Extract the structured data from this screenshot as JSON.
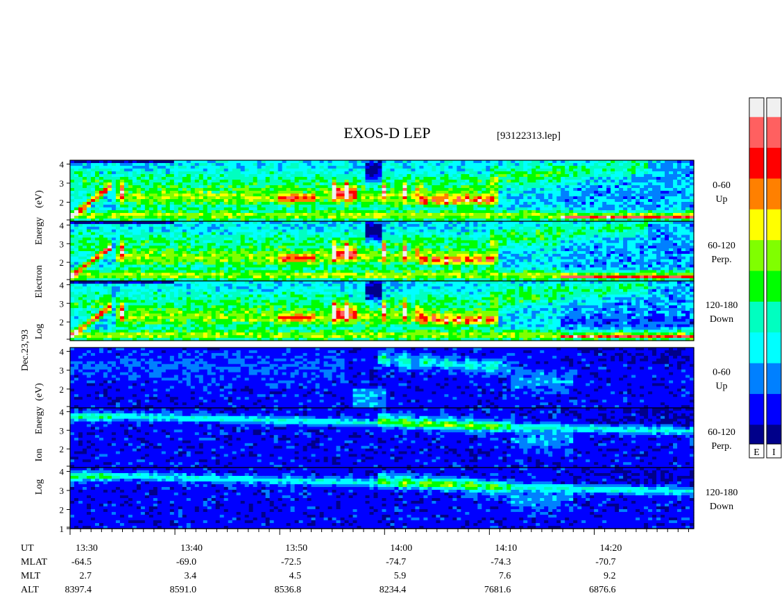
{
  "chart_data": {
    "type": "heatmap",
    "title": "EXOS-D LEP",
    "file_label": "[93122313.lep]",
    "date_label": "Dec.23,'93",
    "x_axis": {
      "unit_label": "UT",
      "range_minutes": [
        0,
        59.5
      ],
      "ticks": [
        {
          "minute": 0,
          "label": "13:30"
        },
        {
          "minute": 10,
          "label": "13:40"
        },
        {
          "minute": 20,
          "label": "13:50"
        },
        {
          "minute": 30,
          "label": "14:00"
        },
        {
          "minute": 40,
          "label": "14:10"
        },
        {
          "minute": 50,
          "label": "14:20"
        }
      ]
    },
    "ephemeris": [
      {
        "name": "MLAT",
        "values": [
          "-64.5",
          "-69.0",
          "-72.5",
          "-74.7",
          "-74.3",
          "-70.7"
        ]
      },
      {
        "name": "MLT",
        "values": [
          "2.7",
          "3.4",
          "4.5",
          "5.9",
          "7.6",
          "9.2"
        ]
      },
      {
        "name": "ALT",
        "values": [
          "8397.4",
          "8591.0",
          "8536.8",
          "8234.4",
          "7681.6",
          "6876.6"
        ]
      }
    ],
    "groups": [
      {
        "species": "Electron",
        "ylabel_words": [
          "Log",
          "Electron",
          "Energy",
          "(eV)"
        ]
      },
      {
        "species": "Ion",
        "ylabel_words": [
          "Log",
          "Ion",
          "Energy",
          "(eV)"
        ]
      }
    ],
    "panels": [
      {
        "group": "Electron",
        "pitch": "0-60",
        "direction": "Up",
        "y_ticks": [
          "4",
          "3",
          "2"
        ],
        "ylim": [
          1,
          4.2
        ]
      },
      {
        "group": "Electron",
        "pitch": "60-120",
        "direction": "Perp.",
        "y_ticks": [
          "4",
          "3",
          "2"
        ],
        "ylim": [
          1,
          4.2
        ]
      },
      {
        "group": "Electron",
        "pitch": "120-180",
        "direction": "Down",
        "y_ticks": [
          "4",
          "3",
          "2"
        ],
        "ylim": [
          1,
          4.2
        ]
      },
      {
        "group": "Ion",
        "pitch": "0-60",
        "direction": "Up",
        "y_ticks": [
          "4",
          "3",
          "2"
        ],
        "ylim": [
          1,
          4.2
        ]
      },
      {
        "group": "Ion",
        "pitch": "60-120",
        "direction": "Perp.",
        "y_ticks": [
          "4",
          "3",
          "2"
        ],
        "ylim": [
          1,
          4.2
        ]
      },
      {
        "group": "Ion",
        "pitch": "120-180",
        "direction": "Down",
        "y_ticks": [
          "4",
          "3",
          "2",
          "1"
        ],
        "ylim": [
          1,
          4.2
        ]
      }
    ],
    "colorbars": [
      {
        "label": "E"
      },
      {
        "label": "I"
      }
    ],
    "colormap": [
      "#f0f0f0",
      "#ff6060",
      "#ff0000",
      "#ff8000",
      "#ffff00",
      "#80ff00",
      "#00ff00",
      "#00ffc0",
      "#00ffff",
      "#0080ff",
      "#0000ff",
      "#00008a"
    ]
  }
}
